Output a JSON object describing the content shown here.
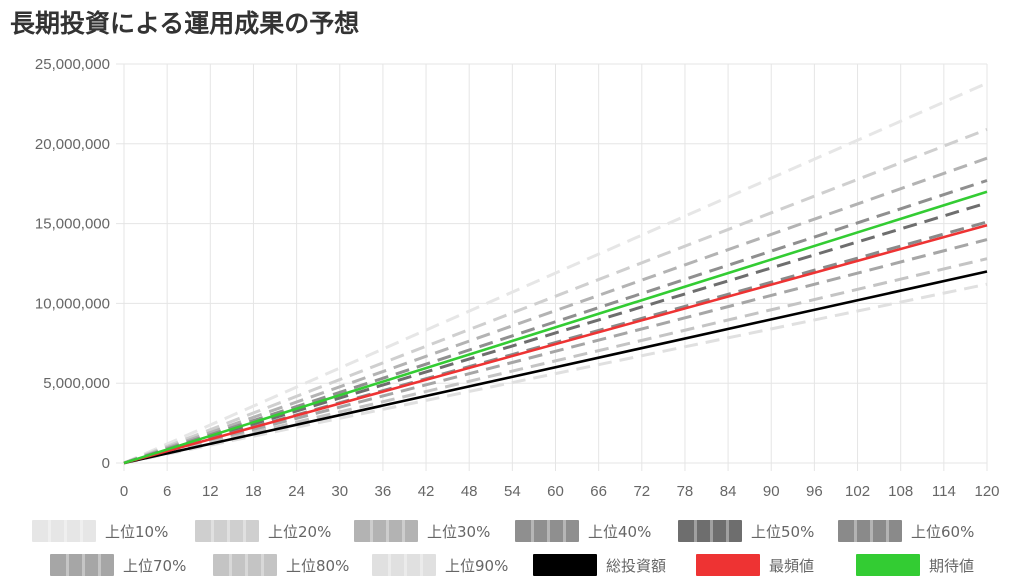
{
  "title": "長期投資による運用成果の予想",
  "chart_data": {
    "type": "line",
    "title": "長期投資による運用成果の予想",
    "xlabel": "",
    "ylabel": "",
    "xlim": [
      0,
      120
    ],
    "ylim": [
      0,
      25000000
    ],
    "grid": true,
    "legend_position": "bottom",
    "x_ticks": [
      0,
      6,
      12,
      18,
      24,
      30,
      36,
      42,
      48,
      54,
      60,
      66,
      72,
      78,
      84,
      90,
      96,
      102,
      108,
      114,
      120
    ],
    "y_ticks": [
      0,
      5000000,
      10000000,
      15000000,
      20000000,
      25000000
    ],
    "y_tick_labels": [
      "0",
      "5,000,000",
      "10,000,000",
      "15,000,000",
      "20,000,000",
      "25,000,000"
    ],
    "x": [
      0,
      120
    ],
    "series": [
      {
        "name": "上位10%",
        "style": "dashed",
        "color": "#e6e6e6",
        "values": [
          0,
          23800000
        ]
      },
      {
        "name": "上位20%",
        "style": "dashed",
        "color": "#cfcfcf",
        "values": [
          0,
          20900000
        ]
      },
      {
        "name": "上位30%",
        "style": "dashed",
        "color": "#b3b3b3",
        "values": [
          0,
          19100000
        ]
      },
      {
        "name": "上位40%",
        "style": "dashed",
        "color": "#8f8f8f",
        "values": [
          0,
          17700000
        ]
      },
      {
        "name": "上位50%",
        "style": "dashed",
        "color": "#6e6e6e",
        "values": [
          0,
          16300000
        ]
      },
      {
        "name": "上位60%",
        "style": "dashed",
        "color": "#8a8a8a",
        "values": [
          0,
          15100000
        ]
      },
      {
        "name": "上位70%",
        "style": "dashed",
        "color": "#a6a6a6",
        "values": [
          0,
          14000000
        ]
      },
      {
        "name": "上位80%",
        "style": "dashed",
        "color": "#c4c4c4",
        "values": [
          0,
          12800000
        ]
      },
      {
        "name": "上位90%",
        "style": "dashed",
        "color": "#e0e0e0",
        "values": [
          0,
          11200000
        ]
      },
      {
        "name": "総投資額",
        "style": "solid",
        "color": "#000000",
        "values": [
          0,
          12000000
        ]
      },
      {
        "name": "最頻値",
        "style": "solid",
        "color": "#ee3333",
        "values": [
          0,
          14900000
        ]
      },
      {
        "name": "期待値",
        "style": "solid",
        "color": "#33cc33",
        "values": [
          0,
          17000000
        ]
      }
    ]
  }
}
